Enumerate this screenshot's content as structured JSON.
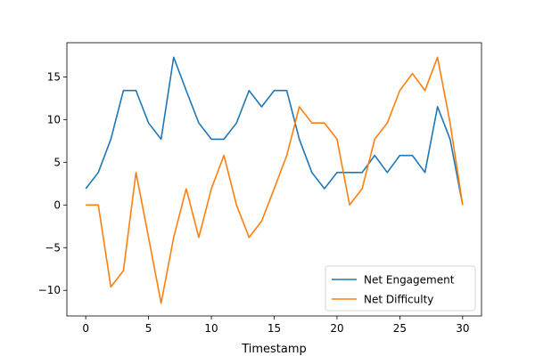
{
  "chart_data": {
    "type": "line",
    "title": "",
    "xlabel": "Timestamp",
    "ylabel": "",
    "xlim": [
      -1.5,
      31.5
    ],
    "ylim": [
      -13,
      19
    ],
    "xticks": [
      0,
      5,
      10,
      15,
      20,
      25,
      30
    ],
    "yticks": [
      -10,
      -5,
      0,
      5,
      10,
      15
    ],
    "xtick_labels": [
      "0",
      "5",
      "10",
      "15",
      "20",
      "25",
      "30"
    ],
    "ytick_labels": [
      "−10",
      "−5",
      "0",
      "5",
      "10",
      "15"
    ],
    "grid": false,
    "legend_position": "lower-right",
    "x": [
      0,
      1,
      2,
      3,
      4,
      5,
      6,
      7,
      8,
      9,
      10,
      11,
      12,
      13,
      14,
      15,
      16,
      17,
      18,
      19,
      20,
      21,
      22,
      23,
      24,
      25,
      26,
      27,
      28,
      29,
      30
    ],
    "series": [
      {
        "name": "Net Engagement",
        "color": "#1f77b4",
        "values": [
          1.9,
          3.8,
          7.7,
          13.4,
          13.4,
          9.6,
          7.7,
          17.3,
          13.4,
          9.6,
          7.7,
          7.7,
          9.6,
          13.4,
          11.5,
          13.4,
          13.4,
          7.7,
          3.8,
          1.9,
          3.8,
          3.8,
          3.8,
          5.8,
          3.8,
          5.8,
          5.8,
          3.8,
          11.5,
          7.7,
          0
        ]
      },
      {
        "name": "Net Difficulty",
        "color": "#ff7f0e",
        "values": [
          0,
          0,
          -9.6,
          -7.7,
          3.8,
          -3.8,
          -11.5,
          -3.8,
          1.9,
          -3.8,
          1.9,
          5.8,
          0,
          -3.8,
          -1.9,
          1.9,
          5.8,
          11.5,
          9.6,
          9.6,
          7.7,
          0,
          1.9,
          7.7,
          9.6,
          13.4,
          15.4,
          13.4,
          17.3,
          9.6,
          0
        ]
      }
    ]
  }
}
